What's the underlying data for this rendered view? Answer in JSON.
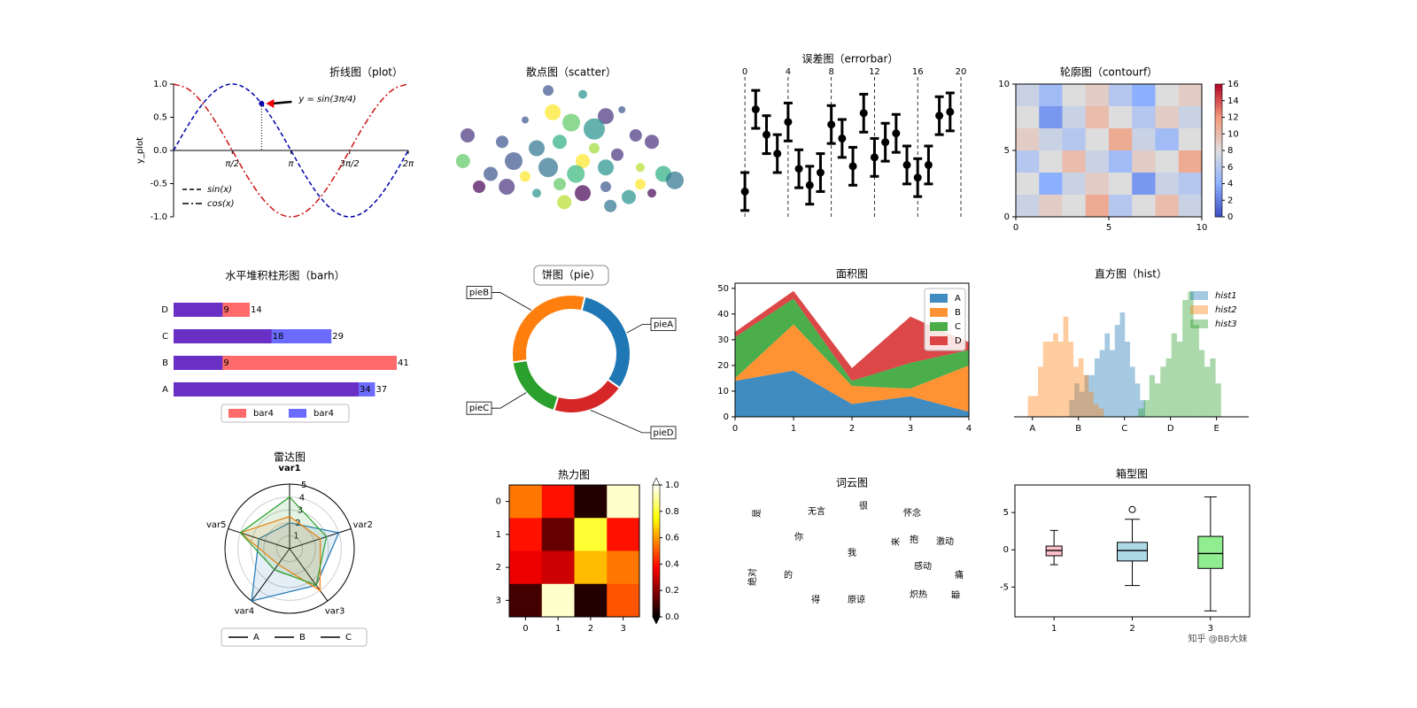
{
  "chart_data": [
    {
      "type": "line",
      "title": "折线图（plot）",
      "ylabel": "y_plot",
      "x": [
        0,
        0.393,
        0.785,
        1.178,
        1.571,
        1.963,
        2.356,
        2.749,
        3.142,
        3.534,
        3.927,
        4.32,
        4.712,
        5.105,
        5.498,
        5.89,
        6.283
      ],
      "series": [
        {
          "name": "sin(x)",
          "color": "#0000aa",
          "linestyle": "dashed",
          "values": [
            0,
            0.383,
            0.707,
            0.924,
            1,
            0.924,
            0.707,
            0.383,
            0,
            -0.383,
            -0.707,
            -0.924,
            -1,
            -0.924,
            -0.707,
            -0.383,
            0
          ]
        },
        {
          "name": "cos(x)",
          "color": "#cc1111",
          "linestyle": "dashdot",
          "values": [
            1,
            0.924,
            0.707,
            0.383,
            0,
            -0.383,
            -0.707,
            -0.924,
            -1,
            -0.924,
            -0.707,
            -0.383,
            0,
            0.383,
            0.707,
            0.924,
            1
          ]
        }
      ],
      "xlim": [
        0,
        6.283
      ],
      "ylim": [
        -1,
        1
      ],
      "xticks": [
        {
          "value": 1.571,
          "label": "π/2"
        },
        {
          "value": 3.142,
          "label": "π"
        },
        {
          "value": 4.712,
          "label": "3π/2"
        },
        {
          "value": 6.283,
          "label": "2π"
        }
      ],
      "yticks": [
        {
          "value": 1,
          "label": "1.0"
        },
        {
          "value": 0.5,
          "label": "0.5"
        },
        {
          "value": 0,
          "label": "0.0"
        },
        {
          "value": -0.5,
          "label": "-0.5"
        },
        {
          "value": -1,
          "label": "-1.0"
        }
      ],
      "annotation": {
        "text": "y = sin(3π/4)",
        "x": 2.356,
        "y": 0.707
      },
      "legend": "lower left"
    },
    {
      "type": "scatter",
      "title": "散点图（scatter）",
      "title_color": "#cc2222",
      "x": [
        0.05,
        0.03,
        0.4,
        0.55,
        0.65,
        0.5,
        0.6,
        0.3,
        0.78,
        0.85,
        0.2,
        0.35,
        0.45,
        0.25,
        0.4,
        0.55,
        0.65,
        0.7,
        0.8,
        0.9,
        0.95,
        0.15,
        0.22,
        0.3,
        0.45,
        0.55,
        0.65,
        0.75,
        0.85,
        0.47,
        0.67,
        0.35,
        0.1,
        0.6,
        0.72,
        0.42,
        0.52,
        0.8
      ],
      "series": [
        {
          "values": [
            0.6,
            0.4,
            0.95,
            0.92,
            0.75,
            0.7,
            0.65,
            0.72,
            0.6,
            0.55,
            0.55,
            0.5,
            0.55,
            0.4,
            0.35,
            0.4,
            0.35,
            0.45,
            0.35,
            0.3,
            0.25,
            0.3,
            0.2,
            0.28,
            0.22,
            0.15,
            0.2,
            0.12,
            0.15,
            0.08,
            0.05,
            0.15,
            0.2,
            0.5,
            0.8,
            0.78,
            0.3,
            0.22
          ],
          "sizes": [
            8,
            8,
            6,
            5,
            9,
            10,
            12,
            4,
            7,
            8,
            7,
            9,
            8,
            10,
            11,
            8,
            9,
            7,
            5,
            9,
            10,
            8,
            9,
            6,
            7,
            9,
            6,
            8,
            5,
            8,
            7,
            5,
            7,
            6,
            4,
            9,
            10,
            6
          ],
          "colors": [
            "#46327e",
            "#5ec962",
            "#3b528b",
            "#21918c",
            "#46327e",
            "#5ec962",
            "#21918c",
            "#3b528b",
            "#46327e",
            "#472d7b",
            "#3b528b",
            "#2c728e",
            "#28ae80",
            "#3b528b",
            "#2c728e",
            "#fde725",
            "#21918c",
            "#46327e",
            "#b5de2b",
            "#28ae80",
            "#2c728e",
            "#3b528b",
            "#46327e",
            "#fde725",
            "#5ec962",
            "#440154",
            "#3b528b",
            "#21918c",
            "#440154",
            "#b5de2b",
            "#2c728e",
            "#21918c",
            "#440154",
            "#a0da39",
            "#3b528b",
            "#fde725",
            "#35b779",
            "#fde725"
          ]
        }
      ],
      "xlim": [
        0,
        1
      ],
      "ylim": [
        0,
        1
      ]
    },
    {
      "type": "errorbar",
      "title": "误差图（errorbar）",
      "x": [
        0,
        1,
        2,
        3,
        4,
        5,
        6,
        7,
        8,
        9,
        10,
        11,
        12,
        13,
        14,
        15,
        16,
        17,
        18,
        19
      ],
      "values": [
        0.2,
        0.85,
        0.65,
        0.5,
        0.75,
        0.38,
        0.25,
        0.35,
        0.73,
        0.62,
        0.4,
        0.82,
        0.47,
        0.59,
        0.66,
        0.41,
        0.31,
        0.41,
        0.8,
        0.83
      ],
      "errors": [
        0.15,
        0.15,
        0.15,
        0.15,
        0.15,
        0.15,
        0.15,
        0.15,
        0.15,
        0.15,
        0.15,
        0.15,
        0.15,
        0.15,
        0.15,
        0.15,
        0.15,
        0.15,
        0.15,
        0.15
      ],
      "xlim": [
        -0.5,
        20
      ],
      "ylim": [
        0,
        1.05
      ],
      "xticks": [
        0,
        4,
        8,
        12,
        16,
        20
      ],
      "grid": true,
      "color": "#000000",
      "ecolor": "#cccccc"
    },
    {
      "type": "contourf",
      "title": "轮廓图（contourf）",
      "z": [
        [
          7,
          5,
          8,
          9,
          6,
          4,
          8,
          9
        ],
        [
          8,
          3,
          7,
          10,
          8,
          6,
          9,
          7
        ],
        [
          9,
          7,
          6,
          8,
          11,
          7,
          5,
          8
        ],
        [
          6,
          8,
          10,
          7,
          5,
          9,
          8,
          11
        ],
        [
          8,
          4,
          7,
          9,
          8,
          3,
          7,
          6
        ],
        [
          7,
          9,
          8,
          11,
          6,
          8,
          10,
          7
        ]
      ],
      "xlim": [
        0,
        10
      ],
      "ylim": [
        0,
        10
      ],
      "xticks": [
        0,
        5,
        10
      ],
      "yticks": [
        0,
        5,
        10
      ],
      "colormap": "coolwarm",
      "clim": [
        0,
        16
      ],
      "cticks": [
        0,
        2,
        4,
        6,
        8,
        10,
        12,
        14,
        16
      ]
    },
    {
      "type": "barh",
      "title": "水平堆积柱形图（barh）",
      "categories": [
        "A",
        "B",
        "C",
        "D"
      ],
      "series": [
        {
          "name": "bar4",
          "color": "#ff6b6b",
          "values": [
            null,
            41,
            null,
            14
          ]
        },
        {
          "name": "bar4",
          "color": "#6b6bff",
          "values": [
            37,
            null,
            29,
            null
          ]
        },
        {
          "color": "#6a2fc4",
          "values": [
            34,
            9,
            18,
            9
          ]
        }
      ],
      "xlim": [
        0,
        41
      ],
      "legend": "lower center"
    },
    {
      "type": "pie",
      "title": "饼图（pie）",
      "labels": [
        "pieA",
        "pieB",
        "pieC",
        "pieD"
      ],
      "values": [
        31,
        31,
        18,
        20
      ],
      "colors": [
        "#1f77b4",
        "#ff7f0e",
        "#2ca02c",
        "#d62728"
      ],
      "startangle": -35
    },
    {
      "type": "area",
      "title": "面积图",
      "x": [
        0,
        1,
        2,
        3,
        4
      ],
      "series": [
        {
          "name": "A",
          "color": "#1f77b4",
          "values": [
            14,
            18,
            5,
            8,
            2
          ]
        },
        {
          "name": "B",
          "color": "#ff7f0e",
          "values": [
            1,
            18,
            7,
            3,
            18
          ]
        },
        {
          "name": "C",
          "color": "#2ca02c",
          "values": [
            16,
            10,
            2,
            10,
            6
          ]
        },
        {
          "name": "D",
          "color": "#d62728",
          "values": [
            2,
            3,
            5,
            18,
            3
          ]
        }
      ],
      "xlim": [
        0,
        4
      ],
      "ylim": [
        0,
        52
      ],
      "xticks": [
        0,
        1,
        2,
        3,
        4
      ],
      "yticks": [
        0,
        10,
        20,
        30,
        40,
        50
      ],
      "legend": "upper right"
    },
    {
      "type": "hist",
      "title": "直方图（hist）",
      "series": [
        {
          "name": "hist1",
          "color": "#1f77b4",
          "bins": [
            0.8,
            0.91,
            1.02,
            1.13,
            1.24,
            1.35,
            1.46,
            1.57,
            1.68,
            1.79,
            1.9,
            2.01,
            2.12,
            2.23,
            2.34,
            2.45
          ],
          "counts": [
            4,
            8,
            6,
            10,
            10,
            14,
            16,
            20,
            16,
            22,
            25,
            18,
            12,
            8,
            4
          ]
        },
        {
          "name": "hist2",
          "color": "#ff7f0e",
          "bins": [
            -0.1,
            0.01,
            0.12,
            0.23,
            0.34,
            0.45,
            0.56,
            0.67,
            0.78,
            0.89,
            1.0,
            1.11,
            1.22,
            1.33,
            1.44,
            1.55
          ],
          "counts": [
            5,
            5,
            12,
            18,
            18,
            20,
            18,
            24,
            18,
            12,
            14,
            10,
            6,
            3,
            2
          ]
        },
        {
          "name": "hist3",
          "color": "#2ca02c",
          "bins": [
            2.3,
            2.42,
            2.54,
            2.66,
            2.78,
            2.9,
            3.02,
            3.14,
            3.26,
            3.38,
            3.5,
            3.62,
            3.74,
            3.86,
            3.98,
            4.1
          ],
          "counts": [
            2,
            4,
            10,
            8,
            12,
            14,
            20,
            18,
            28,
            30,
            22,
            16,
            12,
            14,
            8
          ]
        }
      ],
      "xlim": [
        -0.4,
        4.7
      ],
      "ylim": [
        0,
        32
      ],
      "xticks": [
        {
          "value": 0,
          "label": "A"
        },
        {
          "value": 1,
          "label": "B"
        },
        {
          "value": 2,
          "label": "C"
        },
        {
          "value": 3,
          "label": "D"
        },
        {
          "value": 4,
          "label": "E"
        }
      ],
      "legend": "upper right"
    },
    {
      "type": "radar",
      "title": "雷达图",
      "categories": [
        "var1",
        "var2",
        "var3",
        "var4",
        "var5"
      ],
      "series": [
        {
          "name": "A",
          "color": "#1f77b4",
          "values": [
            2,
            4,
            3.5,
            5,
            2.5
          ]
        },
        {
          "name": "B",
          "color": "#ff7f0e",
          "values": [
            2.5,
            2.5,
            4,
            1.5,
            4
          ]
        },
        {
          "name": "C",
          "color": "#2ca02c",
          "values": [
            4,
            3,
            3.5,
            2,
            4
          ]
        }
      ],
      "rlim": [
        0,
        5
      ],
      "rticks": [
        1,
        2,
        3,
        4,
        5
      ],
      "legend": "lower center"
    },
    {
      "type": "heatmap",
      "title": "热力图",
      "z": [
        [
          0.55,
          0.4,
          0.05,
          0.95
        ],
        [
          0.4,
          0.15,
          0.8,
          0.4
        ],
        [
          0.35,
          0.3,
          0.65,
          0.55
        ],
        [
          0.1,
          0.95,
          0.05,
          0.5
        ]
      ],
      "xticks": [
        0,
        1,
        2,
        3
      ],
      "yticks": [
        0,
        1,
        2,
        3
      ],
      "colormap": "hot",
      "clim": [
        0,
        1
      ],
      "cticks": [
        {
          "value": 0,
          "label": "0.0"
        },
        {
          "value": 0.2,
          "label": "0.2"
        },
        {
          "value": 0.4,
          "label": "0.4"
        },
        {
          "value": 0.6,
          "label": "0.6"
        },
        {
          "value": 0.8,
          "label": "0.8"
        },
        {
          "value": 1,
          "label": "1.0"
        }
      ]
    },
    {
      "type": "wordcloud",
      "title": "词云图",
      "words": [
        "是",
        "无言",
        "很",
        "怀念",
        "你",
        "我",
        "来",
        "抱",
        "激动",
        "绝对",
        "的",
        "感动",
        "痛",
        "炽热",
        "都",
        "得",
        "原谅"
      ],
      "weights": [
        60,
        45,
        42,
        65,
        38,
        100,
        25,
        25,
        35,
        45,
        70,
        55,
        25,
        50,
        22,
        25,
        25
      ],
      "colors": [
        "#5ec962",
        "#5ec962",
        "#46327e",
        "#b5de2b",
        "#46327e",
        "#2a788e",
        "#b5de2b",
        "#440154",
        "#3e4989",
        "#5ec962",
        "#31688e",
        "#2a788e",
        "#5ec962",
        "#2a788e",
        "#3e4989",
        "#35b779",
        "#35b779"
      ]
    },
    {
      "type": "box",
      "title": "箱型图",
      "categories": [
        "1",
        "2",
        "3"
      ],
      "boxes": [
        {
          "whislo": -2,
          "q1": -0.8,
          "med": -0.1,
          "q3": 0.5,
          "whishi": 2.6
        },
        {
          "whislo": -4.8,
          "q1": -1.5,
          "med": -0.1,
          "q3": 1,
          "whishi": 4.1,
          "fliers": [
            5.4
          ]
        },
        {
          "whislo": -8.2,
          "q1": -2.5,
          "med": -0.5,
          "q3": 1.8,
          "whishi": 7.1
        }
      ],
      "colors": [
        "#ffc0cb",
        "#add8e6",
        "#90ee90"
      ],
      "median_color": "#ff7f0e",
      "ylim": [
        -9,
        8.7
      ],
      "yticks": [
        -5,
        0,
        5
      ]
    }
  ],
  "watermark": "知乎 @BB大妹"
}
